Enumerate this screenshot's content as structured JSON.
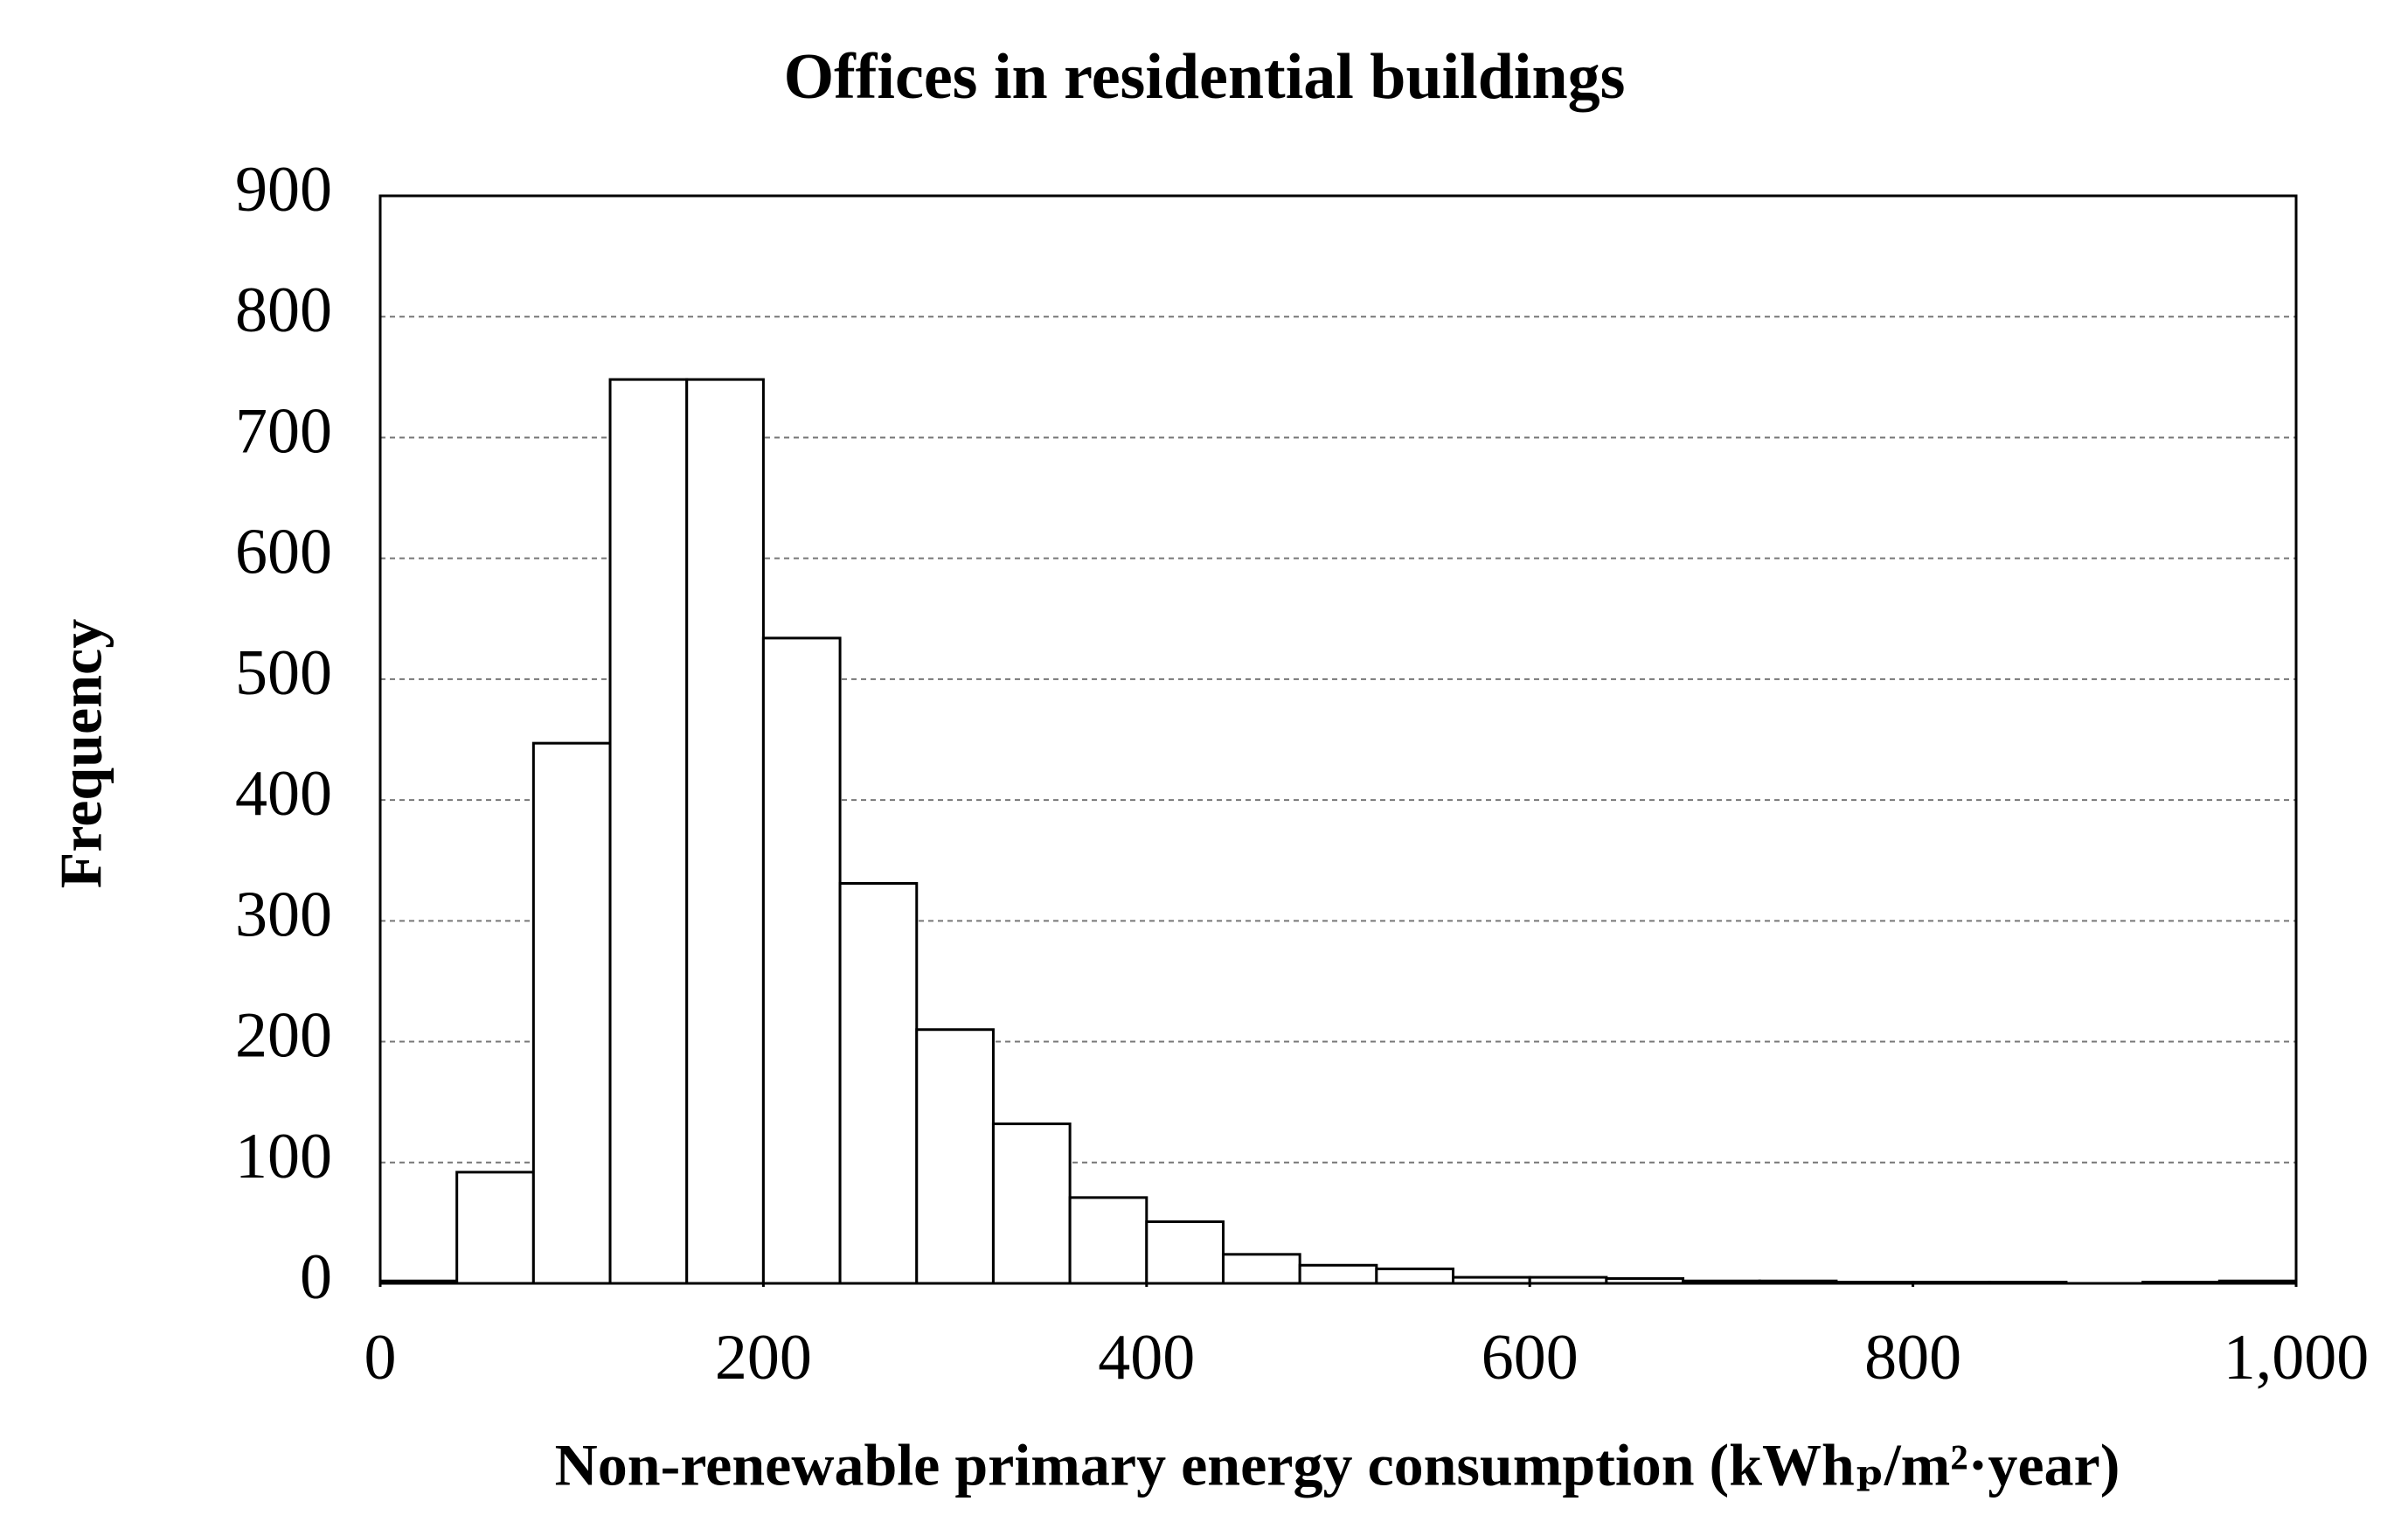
{
  "chart_data": {
    "type": "histogram",
    "title": "Offices in residential buildings",
    "xlabel": "Non-renewable primary energy consumption (kWhₚ/m²·year)",
    "ylabel": "Frequency",
    "bins": [
      0,
      40,
      80,
      120,
      160,
      200,
      240,
      280,
      320,
      360,
      400,
      440,
      480,
      520,
      560,
      600,
      640,
      680,
      720,
      760,
      800,
      840,
      880,
      920,
      960,
      1000
    ],
    "counts": [
      2,
      92,
      447,
      748,
      748,
      534,
      331,
      210,
      132,
      71,
      51,
      24,
      15,
      12,
      5,
      5,
      4,
      2,
      2,
      1,
      1,
      1,
      0,
      1,
      2
    ],
    "color": "#ffffff",
    "xlim": [
      0,
      1000
    ],
    "xticks": [
      0,
      200,
      400,
      600,
      800,
      {
        "value": 1000,
        "label": "1,000"
      }
    ],
    "ylim": [
      0,
      900
    ],
    "yticks": [
      0,
      100,
      200,
      300,
      400,
      500,
      600,
      700,
      800,
      900
    ],
    "grid": true
  }
}
